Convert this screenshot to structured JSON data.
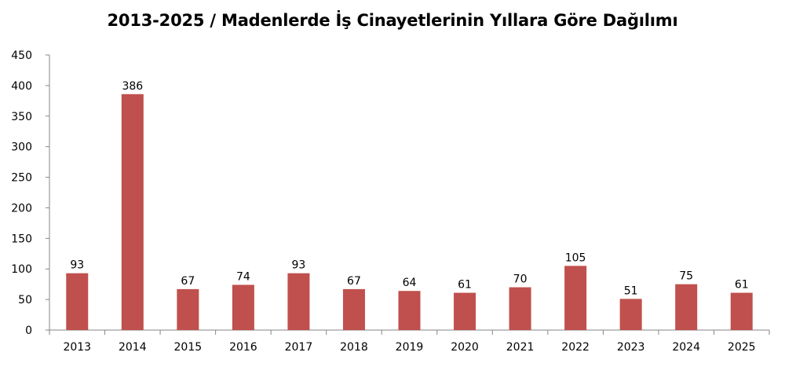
{
  "chart_data": {
    "type": "bar",
    "title": "2013-2025 / Madenlerde İş Cinayetlerinin Yıllara Göre Dağılımı",
    "xlabel": "",
    "ylabel": "",
    "categories": [
      "2013",
      "2014",
      "2015",
      "2016",
      "2017",
      "2018",
      "2019",
      "2020",
      "2021",
      "2022",
      "2023",
      "2024",
      "2025"
    ],
    "values": [
      93,
      386,
      67,
      74,
      93,
      67,
      64,
      61,
      70,
      105,
      51,
      75,
      61
    ],
    "ylim": [
      0,
      450
    ],
    "yticks": [
      0,
      50,
      100,
      150,
      200,
      250,
      300,
      350,
      400,
      450
    ],
    "bar_color": "#c0504d",
    "axis_color": "#868686",
    "grid": false,
    "legend": "none",
    "data_labels": true
  }
}
